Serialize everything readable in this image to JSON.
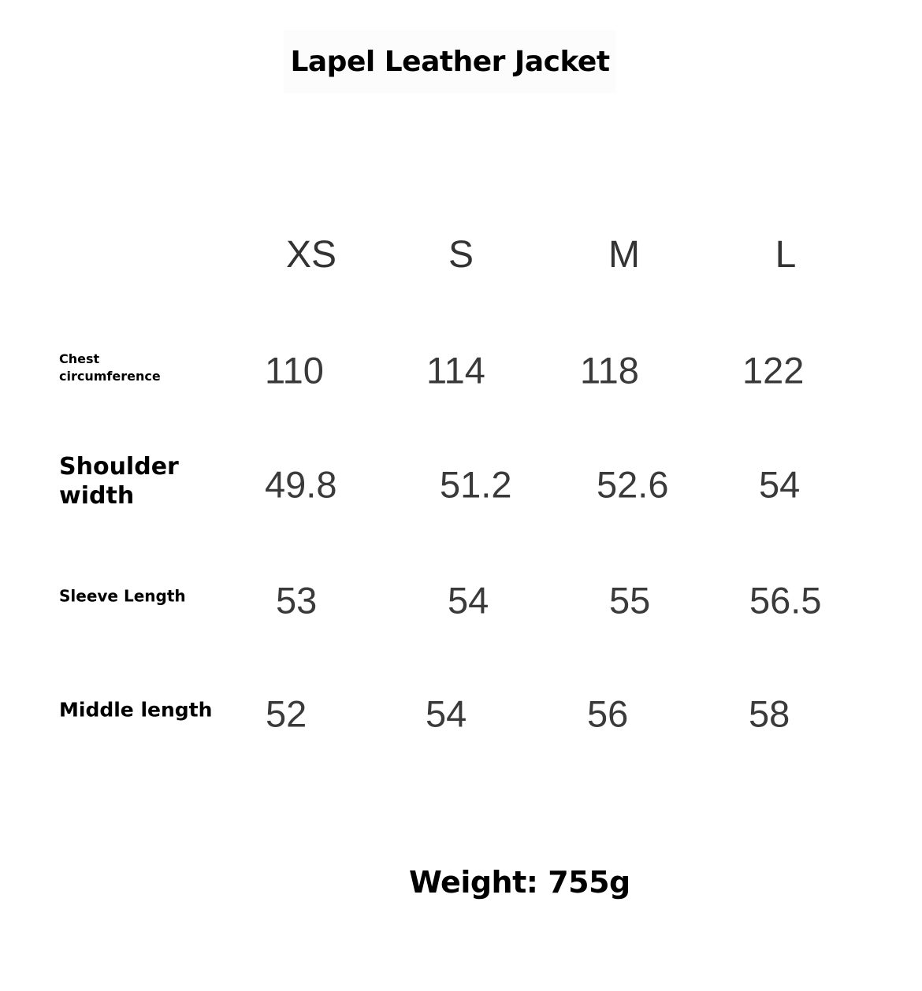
{
  "title": "Lapel Leather Jacket",
  "sizes": [
    "XS",
    "S",
    "M",
    "L"
  ],
  "rows": [
    {
      "label_lines": [
        "Chest",
        "circumference"
      ],
      "values": [
        "110",
        "114",
        "118",
        "122"
      ]
    },
    {
      "label_lines": [
        "Shoulder",
        "width"
      ],
      "values": [
        "49.8",
        "51.2",
        "52.6",
        "54"
      ]
    },
    {
      "label_lines": [
        "Sleeve Length"
      ],
      "values": [
        "53",
        "54",
        "55",
        "56.5"
      ]
    },
    {
      "label_lines": [
        "Middle length"
      ],
      "values": [
        "52",
        "54",
        "56",
        "58"
      ]
    }
  ],
  "weight": "Weight: 755g"
}
